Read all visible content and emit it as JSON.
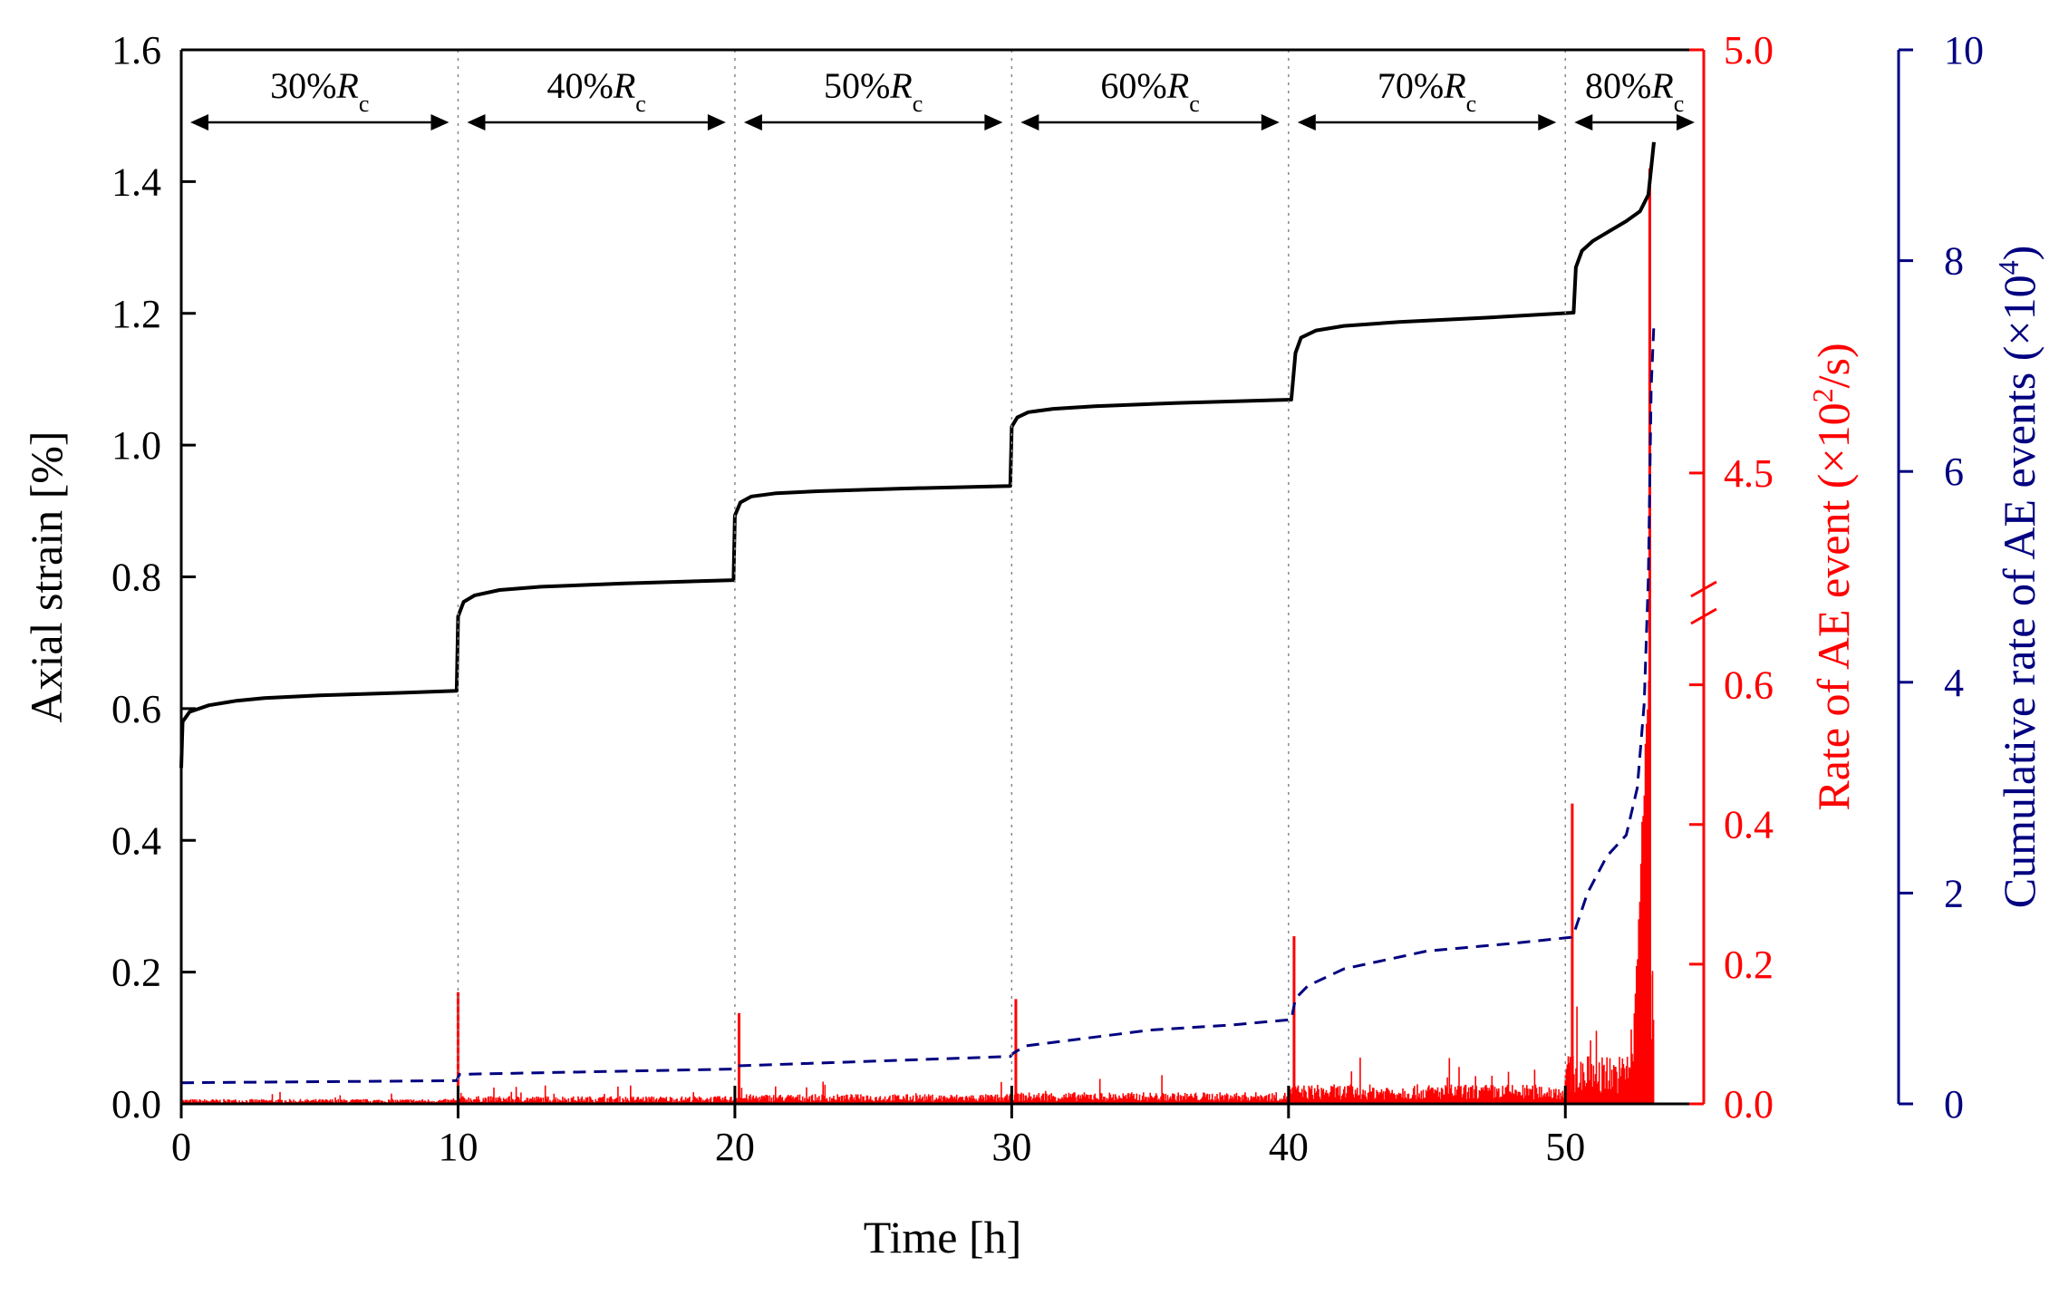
{
  "chart_data": {
    "type": "line",
    "title": "",
    "x_axis": {
      "label": "Time [h]",
      "range": [
        0,
        55
      ],
      "ticks": [
        0,
        10,
        20,
        30,
        40,
        50
      ],
      "tick_labels": [
        "0",
        "10",
        "20",
        "30",
        "40",
        "50"
      ]
    },
    "y_left": {
      "label": "Axial strain [%]",
      "range": [
        0.0,
        1.6
      ],
      "ticks": [
        0.0,
        0.2,
        0.4,
        0.6,
        0.8,
        1.0,
        1.2,
        1.4,
        1.6
      ],
      "tick_labels": [
        "0.0",
        "0.2",
        "0.4",
        "0.6",
        "0.8",
        "1.0",
        "1.2",
        "1.4",
        "1.6"
      ],
      "color": "#000000"
    },
    "y_right_1": {
      "label_prefix": "Rate of AE event (×10",
      "label_sup": "2",
      "label_suffix": "/s)",
      "scale": "broken",
      "lower_range": [
        0.0,
        0.75
      ],
      "upper_range": [
        4.32,
        5.0
      ],
      "break_at": "between 0.75 and 4.32",
      "ticks": [
        0.0,
        0.2,
        0.4,
        0.6,
        4.5,
        5.0
      ],
      "tick_labels": [
        "0.0",
        "0.2",
        "0.4",
        "0.6",
        "4.5",
        "5.0"
      ],
      "color": "#ff0000"
    },
    "y_right_2": {
      "label_prefix": "Cumulative rate of AE events (×10",
      "label_sup": "4",
      "label_suffix": ")",
      "range": [
        0,
        10
      ],
      "ticks": [
        0,
        2,
        4,
        6,
        8,
        10
      ],
      "tick_labels": [
        "0",
        "2",
        "4",
        "6",
        "8",
        "10"
      ],
      "color": "#000080"
    },
    "stage_boundaries": [
      10,
      20,
      30,
      40,
      50
    ],
    "stages": [
      {
        "main": "30%R",
        "sub": "c",
        "x_start": 0,
        "x_end": 10
      },
      {
        "main": "40%R",
        "sub": "c",
        "x_start": 10,
        "x_end": 20
      },
      {
        "main": "50%R",
        "sub": "c",
        "x_start": 20,
        "x_end": 30
      },
      {
        "main": "60%R",
        "sub": "c",
        "x_start": 30,
        "x_end": 40
      },
      {
        "main": "70%R",
        "sub": "c",
        "x_start": 40,
        "x_end": 50
      },
      {
        "main": "80%R",
        "sub": "c",
        "x_start": 50,
        "x_end": 55
      }
    ],
    "series": [
      {
        "name": "Axial strain",
        "axis": "y_left",
        "style": "solid",
        "color": "#000000",
        "x": [
          0,
          0.05,
          0.3,
          1,
          2,
          3,
          5,
          8,
          9.95,
          10.0,
          10.2,
          10.6,
          11.5,
          13,
          16,
          19.95,
          20.0,
          20.2,
          20.6,
          21.5,
          23,
          26,
          29.95,
          30.0,
          30.2,
          30.6,
          31.5,
          33,
          36,
          40.1,
          40.25,
          40.45,
          41,
          42,
          44,
          47,
          50.3,
          50.38,
          50.6,
          51,
          51.6,
          52.2,
          52.7,
          53.0,
          53.2
        ],
        "y": [
          0.51,
          0.58,
          0.595,
          0.605,
          0.612,
          0.616,
          0.62,
          0.624,
          0.627,
          0.74,
          0.762,
          0.772,
          0.78,
          0.785,
          0.79,
          0.795,
          0.893,
          0.913,
          0.922,
          0.927,
          0.93,
          0.934,
          0.938,
          1.028,
          1.042,
          1.05,
          1.055,
          1.059,
          1.064,
          1.069,
          1.14,
          1.163,
          1.174,
          1.181,
          1.187,
          1.193,
          1.201,
          1.27,
          1.295,
          1.31,
          1.325,
          1.34,
          1.355,
          1.38,
          1.46
        ]
      },
      {
        "name": "Cumulative rate of AE events",
        "axis": "y_right_2",
        "style": "dashed",
        "color": "#000080",
        "x": [
          0,
          9.95,
          10.05,
          19.95,
          20.05,
          29.95,
          30.05,
          30.5,
          32,
          35,
          38,
          40.1,
          40.25,
          40.7,
          42,
          45,
          48,
          50.2,
          50.35,
          50.8,
          51.5,
          52.2,
          52.6,
          52.85,
          53.0,
          53.1,
          53.2
        ],
        "y": [
          0.2,
          0.22,
          0.28,
          0.33,
          0.36,
          0.45,
          0.48,
          0.55,
          0.6,
          0.7,
          0.75,
          0.8,
          1.0,
          1.12,
          1.28,
          1.45,
          1.52,
          1.58,
          1.65,
          2.0,
          2.35,
          2.55,
          3.0,
          3.8,
          5.0,
          6.8,
          7.4
        ]
      },
      {
        "name": "Rate of AE event",
        "axis": "y_right_1",
        "style": "bars",
        "color": "#ff0000",
        "peaks": [
          {
            "x": 10.0,
            "y": 0.16
          },
          {
            "x": 20.15,
            "y": 0.13
          },
          {
            "x": 30.15,
            "y": 0.15
          },
          {
            "x": 40.2,
            "y": 0.24
          },
          {
            "x": 50.25,
            "y": 0.43
          },
          {
            "x": 53.05,
            "y": 4.86
          }
        ],
        "baseline_levels": [
          {
            "x_start": 0,
            "x_end": 10,
            "y": 0.005
          },
          {
            "x_start": 10,
            "x_end": 20,
            "y": 0.008
          },
          {
            "x_start": 20,
            "x_end": 30,
            "y": 0.01
          },
          {
            "x_start": 30,
            "x_end": 40,
            "y": 0.012
          },
          {
            "x_start": 40,
            "x_end": 50,
            "y": 0.02
          },
          {
            "x_start": 50,
            "x_end": 53.2,
            "y": 0.05
          }
        ]
      }
    ],
    "grid": false,
    "legend": "none"
  }
}
